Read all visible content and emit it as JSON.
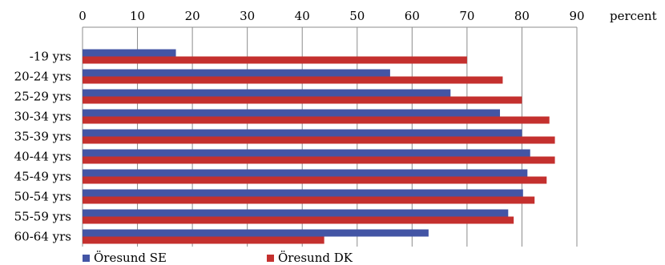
{
  "chart_data": {
    "type": "bar",
    "orientation": "horizontal",
    "title": "",
    "xlabel": "percent",
    "ylabel": "",
    "xlim": [
      0,
      90
    ],
    "x_ticks": [
      0,
      10,
      20,
      30,
      40,
      50,
      60,
      70,
      80,
      90
    ],
    "x_axis_position": "top",
    "grid": true,
    "legend_position": "bottom",
    "categories": [
      "-19 yrs",
      "20-24 yrs",
      "25-29 yrs",
      "30-34 yrs",
      "35-39 yrs",
      "40-44 yrs",
      "45-49 yrs",
      "50-54 yrs",
      "55-59 yrs",
      "60-64 yrs"
    ],
    "series": [
      {
        "name": "Öresund SE",
        "color": "#4355a5",
        "values": [
          17,
          56,
          67,
          76,
          80,
          81.5,
          81,
          80.2,
          77.5,
          63
        ]
      },
      {
        "name": "Öresund DK",
        "color": "#c4302e",
        "values": [
          70,
          76.5,
          80,
          85,
          86,
          86,
          84.5,
          82.3,
          78.5,
          44
        ]
      }
    ]
  }
}
